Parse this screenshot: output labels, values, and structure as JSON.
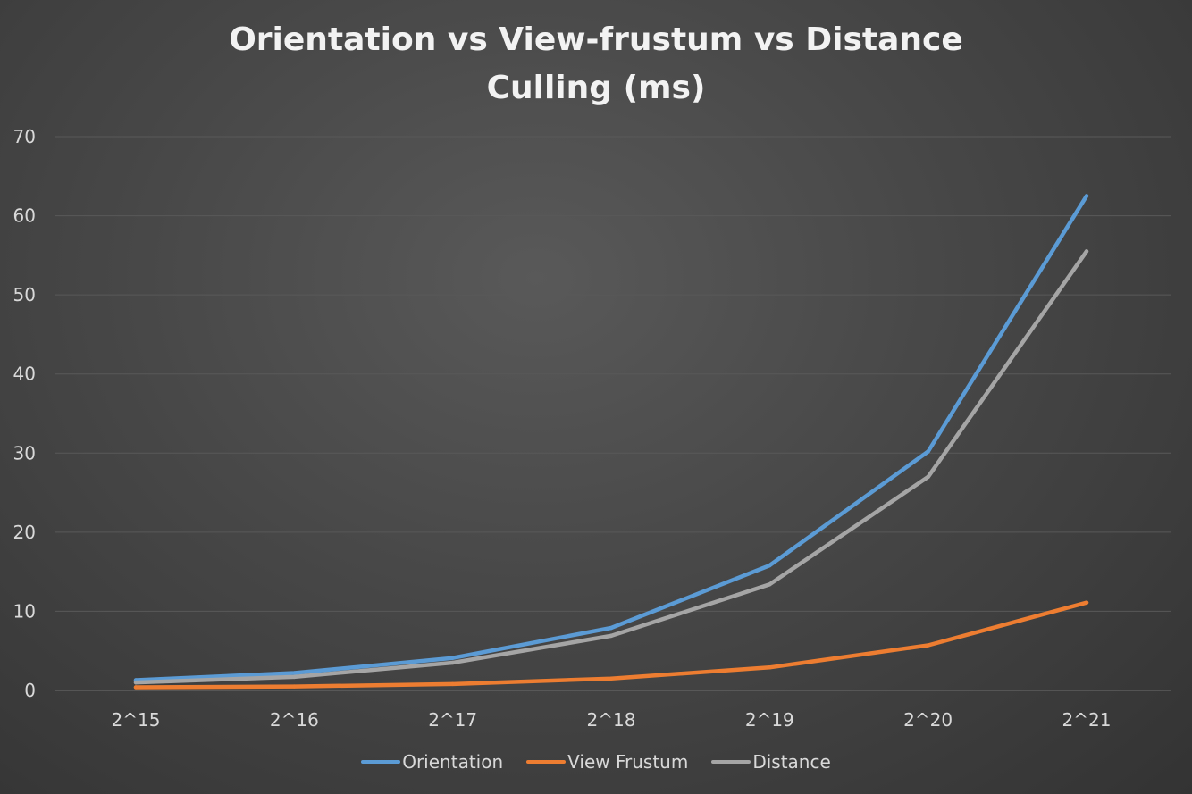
{
  "chart_data": {
    "type": "line",
    "title_lines": [
      "Orientation vs View-frustum vs Distance",
      "Culling (ms)"
    ],
    "categories": [
      "2^15",
      "2^16",
      "2^17",
      "2^18",
      "2^19",
      "2^20",
      "2^21"
    ],
    "ylim": [
      0,
      70
    ],
    "yticks": [
      0,
      10,
      20,
      30,
      40,
      50,
      60,
      70
    ],
    "xlabel": "",
    "ylabel": "",
    "grid": true,
    "legend_position": "bottom",
    "series": [
      {
        "name": "Orientation",
        "color": "#5b9bd5",
        "values": [
          1.3,
          2.2,
          4.1,
          7.9,
          15.8,
          30.2,
          62.5
        ]
      },
      {
        "name": "View Frustum",
        "color": "#ed7d31",
        "values": [
          0.4,
          0.5,
          0.8,
          1.5,
          2.9,
          5.7,
          11.1
        ]
      },
      {
        "name": "Distance",
        "color": "#a5a5a5",
        "values": [
          1.0,
          1.7,
          3.5,
          6.9,
          13.4,
          27.0,
          55.5
        ]
      }
    ]
  }
}
